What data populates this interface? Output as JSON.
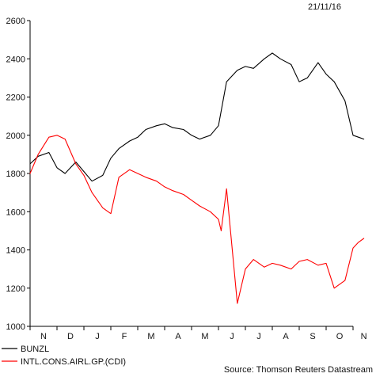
{
  "chart_data": {
    "type": "line",
    "date_label": "21/11/16",
    "source": "Source: Thomson Reuters Datastream",
    "ylim": [
      1000,
      2600
    ],
    "yticks": [
      1000,
      1200,
      1400,
      1600,
      1800,
      2000,
      2200,
      2400,
      2600
    ],
    "ytick_labels": [
      "1000",
      "1200",
      "1400",
      "1600",
      "1800",
      "2000",
      "2200",
      "2400",
      "2600"
    ],
    "xlim": [
      0,
      12
    ],
    "xticks": [
      0,
      1,
      2,
      3,
      4,
      5,
      6,
      7,
      8,
      9,
      10,
      11,
      12
    ],
    "month_labels": [
      {
        "x": 0.5,
        "label": "N"
      },
      {
        "x": 1.5,
        "label": "D"
      },
      {
        "x": 2.5,
        "label": "J"
      },
      {
        "x": 3.5,
        "label": "F"
      },
      {
        "x": 4.5,
        "label": "M"
      },
      {
        "x": 5.5,
        "label": "A"
      },
      {
        "x": 6.5,
        "label": "M"
      },
      {
        "x": 7.5,
        "label": "J"
      },
      {
        "x": 8.5,
        "label": "J"
      },
      {
        "x": 9.5,
        "label": "A"
      },
      {
        "x": 10.5,
        "label": "S"
      },
      {
        "x": 11.5,
        "label": "O"
      },
      {
        "x": 12.4,
        "label": "N"
      }
    ],
    "series": [
      {
        "name": "BUNZL",
        "color": "#000000",
        "x": [
          0.0,
          0.3,
          0.7,
          1.0,
          1.3,
          1.7,
          2.0,
          2.3,
          2.7,
          3.0,
          3.3,
          3.7,
          4.0,
          4.3,
          4.7,
          5.0,
          5.3,
          5.7,
          6.0,
          6.3,
          6.7,
          7.0,
          7.3,
          7.7,
          8.0,
          8.3,
          8.7,
          9.0,
          9.3,
          9.7,
          10.0,
          10.3,
          10.7,
          11.0,
          11.3,
          11.7,
          12.0,
          12.2,
          12.4
        ],
        "values": [
          1850,
          1890,
          1910,
          1830,
          1800,
          1860,
          1810,
          1760,
          1790,
          1880,
          1930,
          1970,
          1990,
          2030,
          2050,
          2060,
          2040,
          2030,
          2000,
          1980,
          2000,
          2050,
          2280,
          2340,
          2360,
          2350,
          2400,
          2430,
          2400,
          2370,
          2280,
          2300,
          2380,
          2320,
          2280,
          2180,
          2000,
          1990,
          1980
        ]
      },
      {
        "name": "INTL.CONS.AIRL.GP.(CDI)",
        "color": "#ff0000",
        "x": [
          0.0,
          0.3,
          0.7,
          1.0,
          1.3,
          1.7,
          2.0,
          2.3,
          2.7,
          3.0,
          3.3,
          3.7,
          4.0,
          4.3,
          4.7,
          5.0,
          5.3,
          5.7,
          6.0,
          6.3,
          6.7,
          7.0,
          7.1,
          7.3,
          7.7,
          8.0,
          8.3,
          8.7,
          9.0,
          9.3,
          9.7,
          10.0,
          10.3,
          10.7,
          11.0,
          11.3,
          11.7,
          12.0,
          12.2,
          12.4
        ],
        "values": [
          1800,
          1900,
          1990,
          2000,
          1980,
          1850,
          1790,
          1700,
          1620,
          1590,
          1780,
          1820,
          1800,
          1780,
          1760,
          1730,
          1710,
          1690,
          1660,
          1630,
          1600,
          1560,
          1500,
          1720,
          1120,
          1300,
          1350,
          1310,
          1330,
          1320,
          1300,
          1340,
          1350,
          1320,
          1330,
          1200,
          1240,
          1410,
          1440,
          1460
        ]
      }
    ]
  }
}
